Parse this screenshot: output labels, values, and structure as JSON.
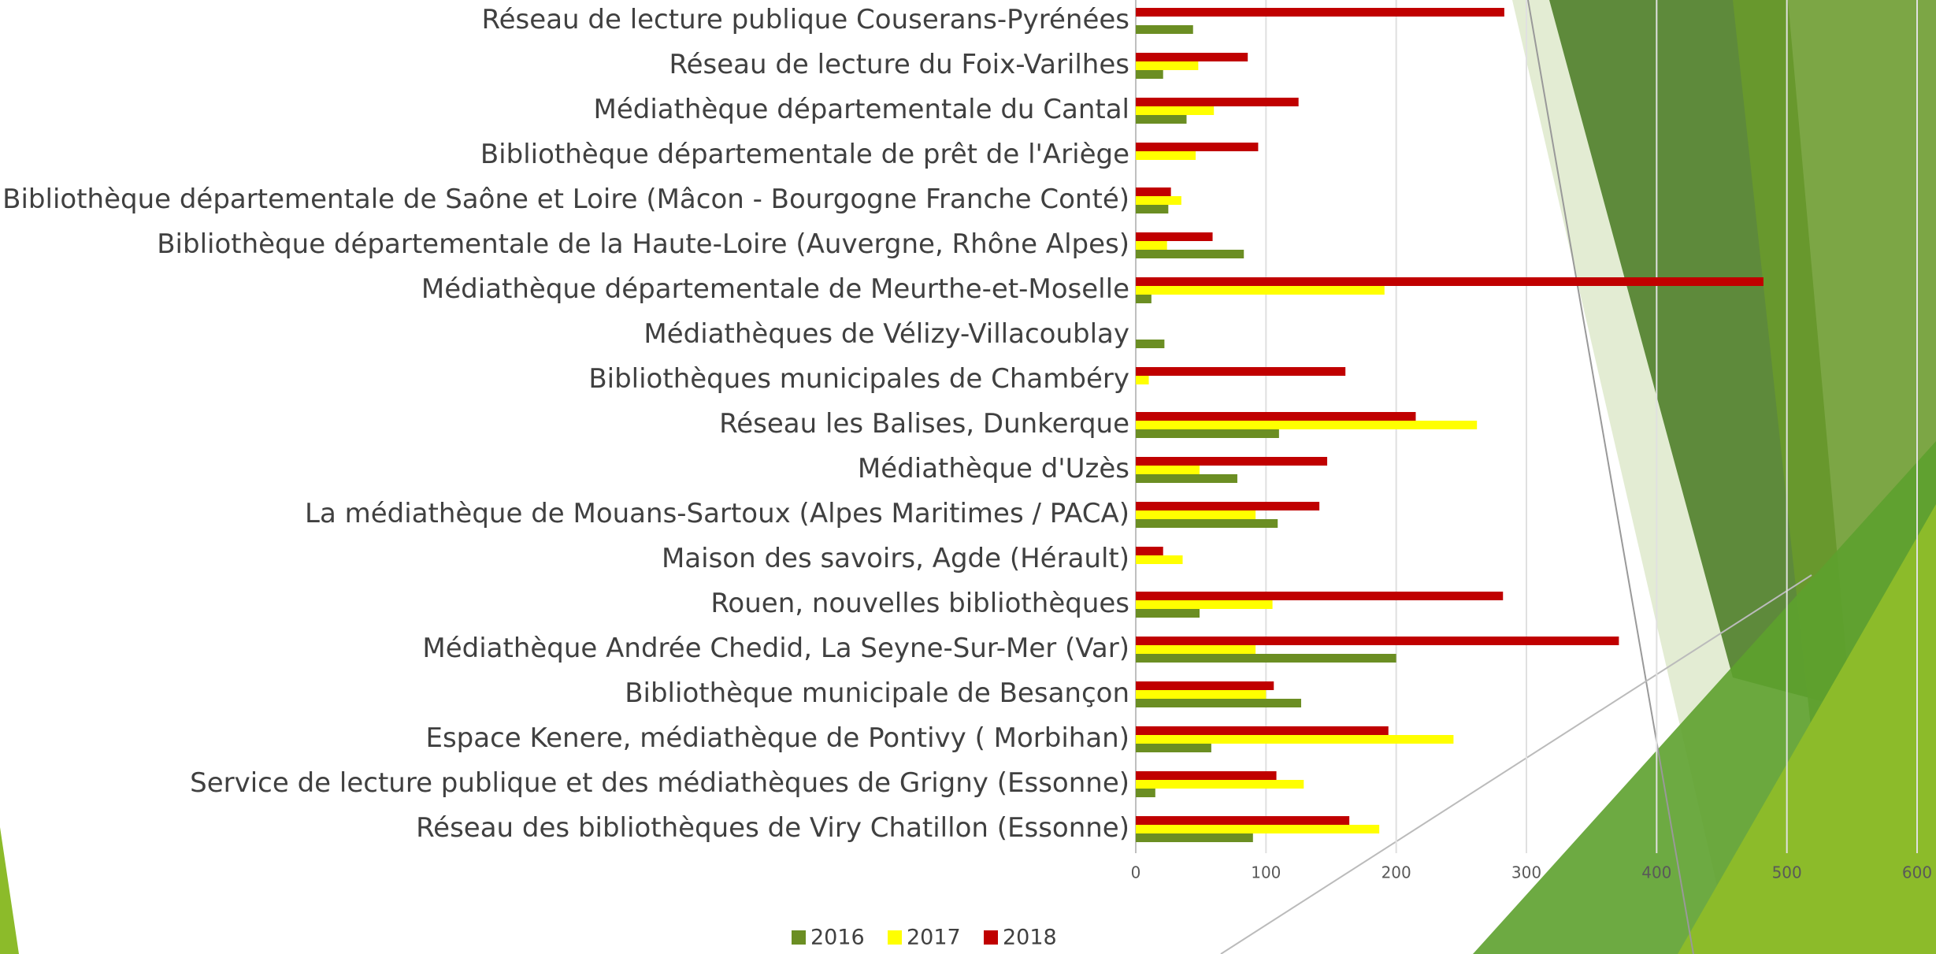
{
  "chart_data": {
    "type": "bar",
    "orientation": "horizontal",
    "categories": [
      "Réseau de lecture publique Couserans-Pyrénées",
      "Réseau de lecture du Foix-Varilhes",
      "Médiathèque départementale du Cantal",
      "Bibliothèque départementale de prêt de l'Ariège",
      "Bibliothèque départementale de Saône et Loire (Mâcon - Bourgogne Franche Conté)",
      "Bibliothèque départementale de la Haute-Loire (Auvergne, Rhône Alpes)",
      "Médiathèque départementale de Meurthe-et-Moselle",
      "Médiathèques de Vélizy-Villacoublay",
      "Bibliothèques municipales de Chambéry",
      "Réseau les Balises, Dunkerque",
      "Médiathèque d'Uzès",
      "La médiathèque de Mouans-Sartoux (Alpes Maritimes / PACA)",
      "Maison des savoirs, Agde (Hérault)",
      "Rouen, nouvelles bibliothèques",
      "Médiathèque Andrée Chedid, La Seyne-Sur-Mer (Var)",
      "Bibliothèque municipale de Besançon",
      "Espace Kenere, médiathèque de Pontivy ( Morbihan)",
      "Service de lecture publique et des médiathèques de Grigny (Essonne)",
      "Réseau des bibliothèques de Viry Chatillon (Essonne)"
    ],
    "series": [
      {
        "name": "2016",
        "color": "#6b8e23",
        "values": [
          44,
          21,
          39,
          null,
          25,
          83,
          12,
          22,
          null,
          110,
          78,
          109,
          null,
          49,
          200,
          127,
          58,
          15,
          90
        ]
      },
      {
        "name": "2017",
        "color": "#ffff00",
        "values": [
          null,
          48,
          60,
          46,
          35,
          24,
          191,
          null,
          10,
          262,
          49,
          92,
          36,
          105,
          92,
          100,
          244,
          129,
          187
        ]
      },
      {
        "name": "2018",
        "color": "#c00000",
        "values": [
          283,
          86,
          125,
          94,
          27,
          59,
          482,
          null,
          161,
          215,
          147,
          141,
          21,
          282,
          371,
          106,
          194,
          108,
          164
        ]
      }
    ],
    "xlim": [
      0,
      600
    ],
    "xticks": [
      0,
      100,
      200,
      300,
      400,
      500,
      600
    ],
    "grid": true,
    "legend": "bottom"
  }
}
